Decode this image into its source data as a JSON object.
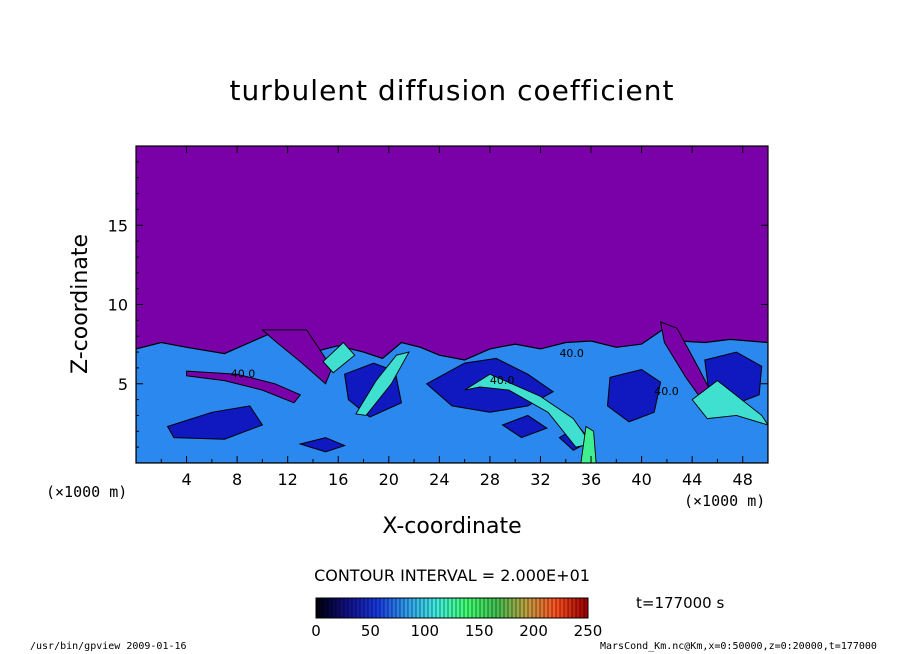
{
  "chart_data": {
    "type": "heatmap",
    "title": "turbulent diffusion coefficient",
    "xlabel": "X-coordinate",
    "ylabel": "Z-coordinate",
    "x_unit": "(×1000 m)",
    "y_unit": "(×1000 m)",
    "xlim": [
      0,
      50
    ],
    "ylim": [
      0,
      20
    ],
    "x_ticks": [
      4,
      8,
      12,
      16,
      20,
      24,
      28,
      32,
      36,
      40,
      44,
      48
    ],
    "y_ticks": [
      5,
      10,
      15
    ],
    "contour_interval_label": "CONTOUR INTERVAL = 2.000E+01",
    "contour_labels": [
      "40.0",
      "40.0",
      "40.0",
      "40.0"
    ],
    "colorbar": {
      "min": 0,
      "max": 250,
      "ticks": [
        0,
        50,
        100,
        150,
        200,
        250
      ]
    },
    "time_label": "t=177000 s",
    "colors": {
      "background_field": "#7a00a8",
      "low": "#1018c0",
      "mid": "#2a88ee",
      "high": "#3fe0d0",
      "peak": "#40f090"
    }
  },
  "footer": {
    "left": "/usr/bin/gpview  2009-01-16",
    "right": "MarsCond_Km.nc@Km,x=0:50000,z=0:20000,t=177000"
  }
}
